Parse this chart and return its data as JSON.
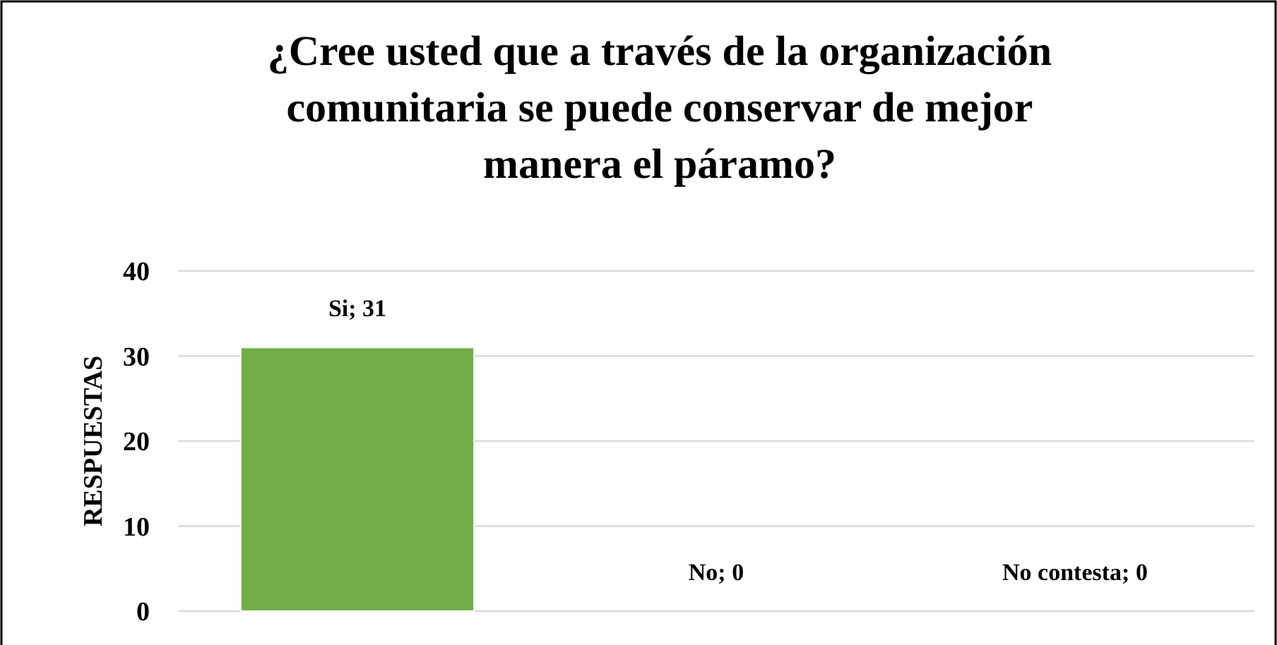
{
  "chart_data": {
    "type": "bar",
    "title": "¿Cree usted que a través de la organización comunitaria se puede conservar de mejor manera el páramo?",
    "ylabel": "RESPUESTAS",
    "categories": [
      null,
      null,
      null
    ],
    "values": [
      31,
      0,
      0
    ],
    "color": "#70ad47",
    "value_labels": [
      "Si; 31",
      "No; 0",
      "No contesta; 0"
    ],
    "ylim": [
      0,
      40
    ],
    "yticks": [
      0,
      10,
      20,
      30,
      40
    ],
    "grid": "y"
  }
}
